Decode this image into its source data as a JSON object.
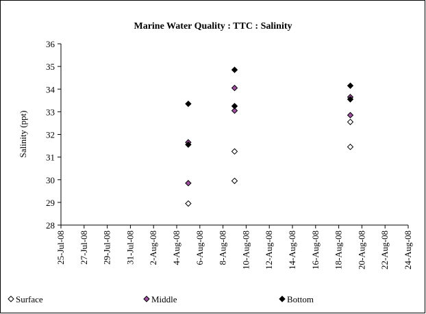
{
  "chart_data": {
    "type": "scatter",
    "title": "Marine Water Quality : TTC : Salinity",
    "ylabel": "Salinity (ppt)",
    "xlim": [
      "2008-07-25",
      "2008-08-24"
    ],
    "xticks": [
      {
        "value": "2008-07-25",
        "label": "25-Jul-08"
      },
      {
        "value": "2008-07-27",
        "label": "27-Jul-08"
      },
      {
        "value": "2008-07-29",
        "label": "29-Jul-08"
      },
      {
        "value": "2008-07-31",
        "label": "31-Jul-08"
      },
      {
        "value": "2008-08-02",
        "label": "2-Aug-08"
      },
      {
        "value": "2008-08-04",
        "label": "4-Aug-08"
      },
      {
        "value": "2008-08-06",
        "label": "6-Aug-08"
      },
      {
        "value": "2008-08-08",
        "label": "8-Aug-08"
      },
      {
        "value": "2008-08-10",
        "label": "10-Aug-08"
      },
      {
        "value": "2008-08-12",
        "label": "12-Aug-08"
      },
      {
        "value": "2008-08-14",
        "label": "14-Aug-08"
      },
      {
        "value": "2008-08-16",
        "label": "16-Aug-08"
      },
      {
        "value": "2008-08-18",
        "label": "18-Aug-08"
      },
      {
        "value": "2008-08-20",
        "label": "20-Aug-08"
      },
      {
        "value": "2008-08-22",
        "label": "22-Aug-08"
      },
      {
        "value": "2008-08-24",
        "label": "24-Aug-08"
      }
    ],
    "ylim": [
      28,
      36
    ],
    "yticks": [
      28,
      29,
      30,
      31,
      32,
      33,
      34,
      35,
      36
    ],
    "legend": "bottom",
    "series": [
      {
        "name": "Surface",
        "color": "#ffffff",
        "x": [
          "2008-08-05",
          "2008-08-09",
          "2008-08-09",
          "2008-08-19",
          "2008-08-19"
        ],
        "values": [
          28.95,
          31.25,
          29.95,
          32.55,
          31.45
        ]
      },
      {
        "name": "Middle",
        "color": "#a050a0",
        "x": [
          "2008-08-05",
          "2008-08-05",
          "2008-08-09",
          "2008-08-09",
          "2008-08-19",
          "2008-08-19"
        ],
        "values": [
          29.85,
          31.65,
          33.05,
          34.05,
          32.85,
          33.65
        ]
      },
      {
        "name": "Bottom",
        "color": "#000000",
        "x": [
          "2008-08-05",
          "2008-08-05",
          "2008-08-09",
          "2008-08-09",
          "2008-08-19",
          "2008-08-19"
        ],
        "values": [
          31.55,
          33.35,
          33.25,
          34.85,
          33.55,
          34.15
        ]
      }
    ]
  }
}
